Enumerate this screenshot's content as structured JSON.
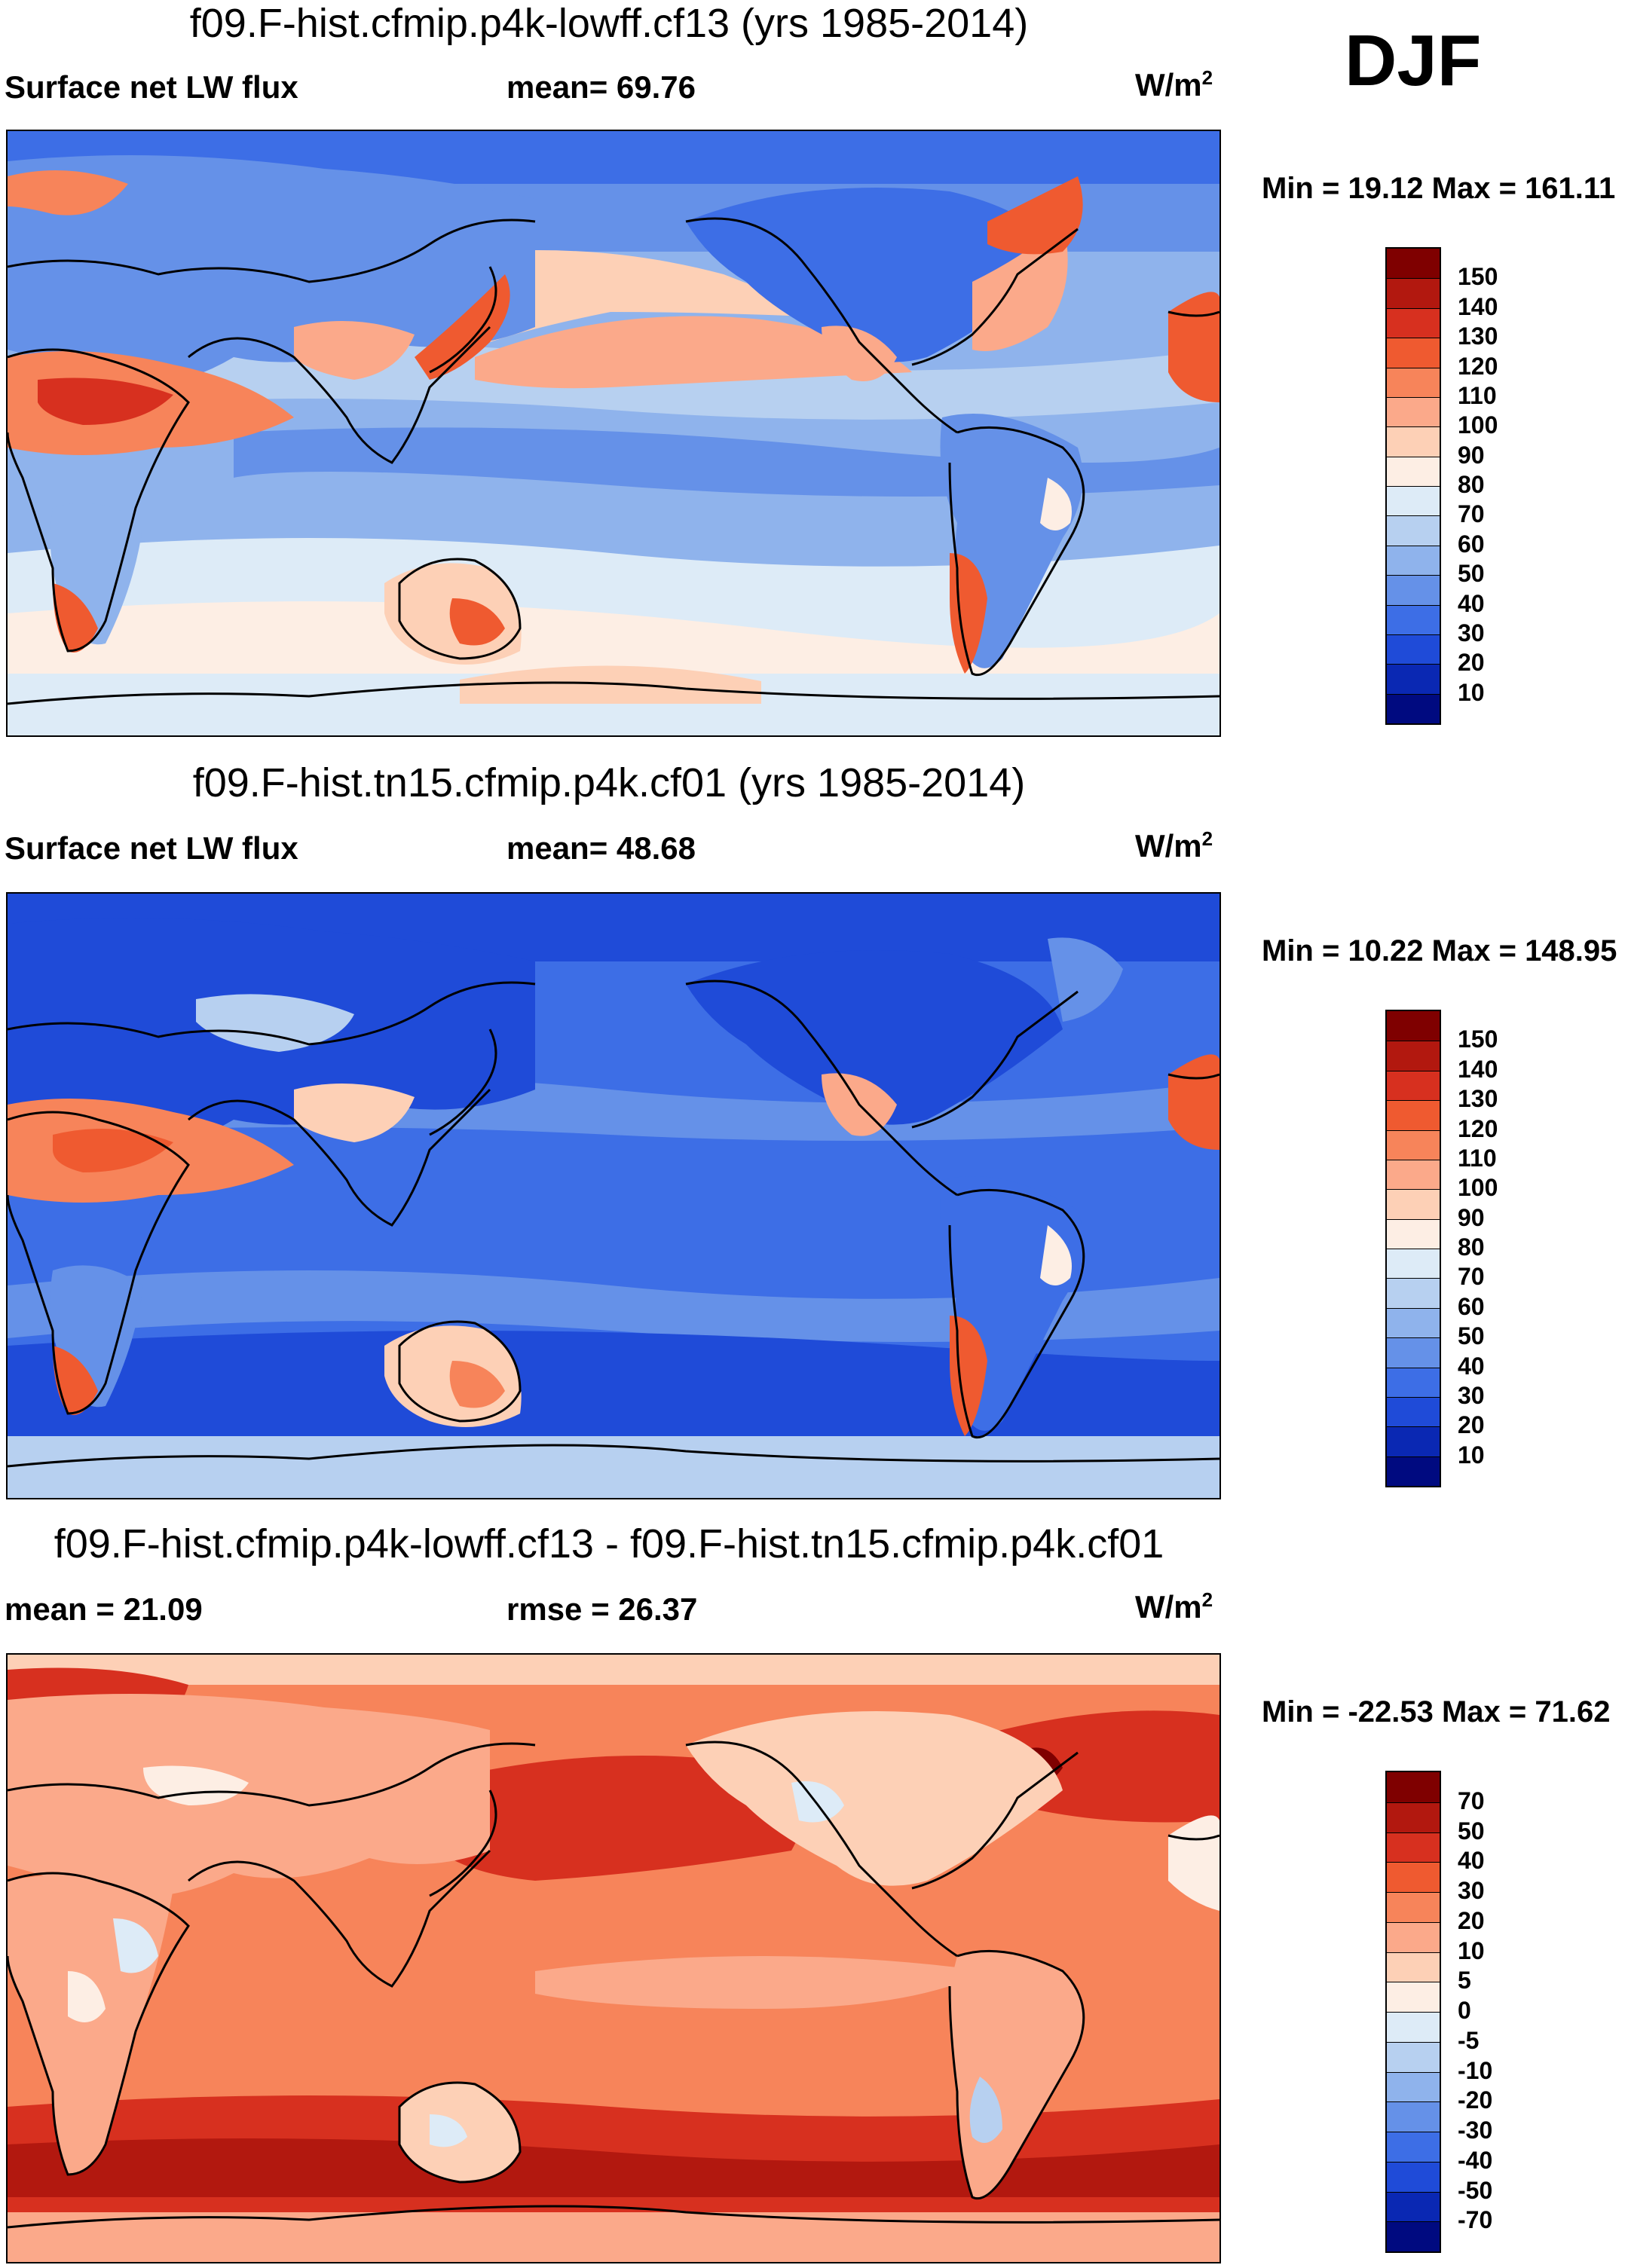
{
  "season": "DJF",
  "units_base": "W/m",
  "units_exp": "2",
  "panels": [
    {
      "title": "f09.F-hist.cfmip.p4k-lowff.cf13 (yrs 1985-2014)",
      "left_label": "Surface net LW flux",
      "stat_label": "mean=  69.76",
      "minmax": "Min =  19.12 Max = 161.11",
      "type": "field"
    },
    {
      "title": "f09.F-hist.tn15.cfmip.p4k.cf01 (yrs 1985-2014)",
      "left_label": "Surface net LW flux",
      "stat_label": "mean=  48.68",
      "minmax": "Min =  10.22 Max = 148.95",
      "type": "field"
    },
    {
      "title": "f09.F-hist.cfmip.p4k-lowff.cf13 - f09.F-hist.tn15.cfmip.p4k.cf01",
      "left_label": "mean =  21.09",
      "stat_label": "rmse =  26.37",
      "minmax": "Min = -22.53 Max =  71.62",
      "type": "diff"
    }
  ],
  "colorbars": {
    "field": {
      "labels": [
        "150",
        "140",
        "130",
        "120",
        "110",
        "100",
        "90",
        "80",
        "70",
        "60",
        "50",
        "40",
        "30",
        "20",
        "10"
      ],
      "colors": [
        "#7f0000",
        "#b2180f",
        "#d7301f",
        "#ef5a30",
        "#f7845a",
        "#fba98a",
        "#fdd0b6",
        "#fdeee4",
        "#ddebf7",
        "#b7d0f0",
        "#8fb3ec",
        "#6591e8",
        "#3d6ee6",
        "#1f4bd8",
        "#0a28b3",
        "#000a80"
      ]
    },
    "diff": {
      "labels": [
        "70",
        "50",
        "40",
        "30",
        "20",
        "10",
        "5",
        "0",
        "-5",
        "-10",
        "-20",
        "-30",
        "-40",
        "-50",
        "-70"
      ],
      "colors": [
        "#7f0000",
        "#b2180f",
        "#d7301f",
        "#ef5a30",
        "#f7845a",
        "#fba98a",
        "#fdd0b6",
        "#fdeee4",
        "#ddebf7",
        "#b7d0f0",
        "#8fb3ec",
        "#6591e8",
        "#3d6ee6",
        "#1f4bd8",
        "#0a28b3",
        "#000a80"
      ]
    }
  }
}
